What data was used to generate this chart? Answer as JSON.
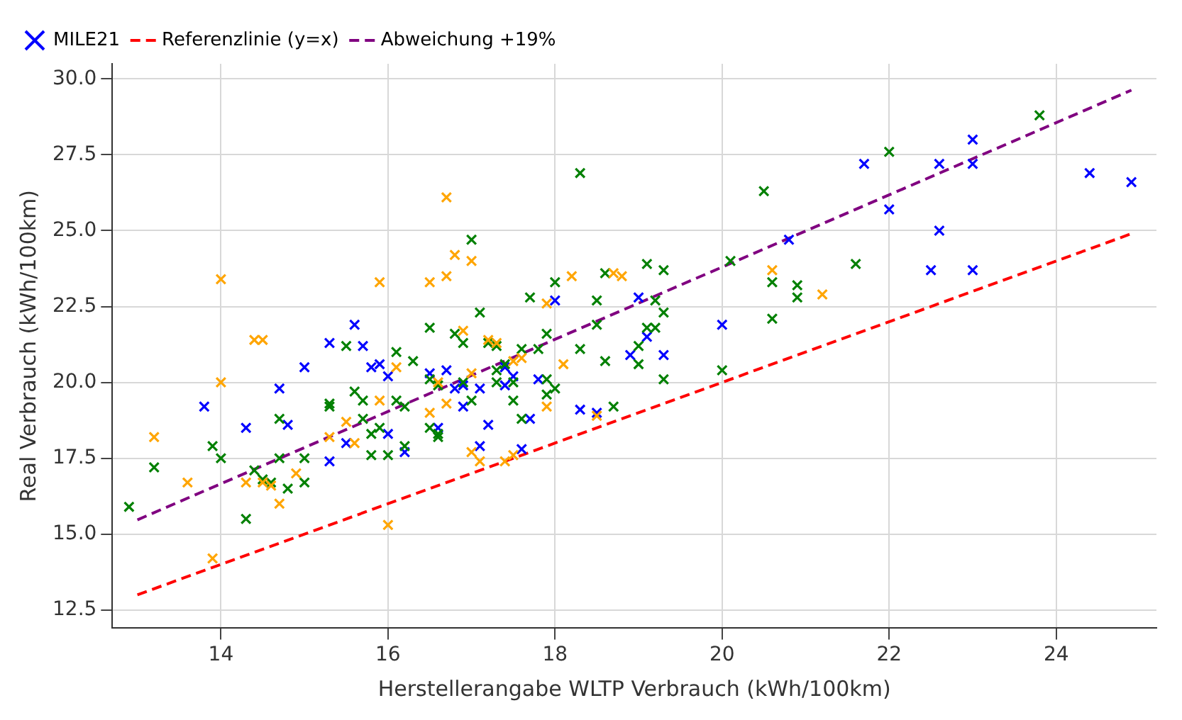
{
  "chart_data": {
    "type": "scatter",
    "xlabel": "Herstellerangabe WLTP Verbrauch (kWh/100km)",
    "ylabel": "Real Verbrauch (kWh/100km)",
    "xlim": [
      12.7,
      25.2
    ],
    "xticks": [
      14,
      16,
      18,
      20,
      22,
      24
    ],
    "ylim": [
      11.9,
      30.5
    ],
    "yticks": [
      12.5,
      {
        "value": 15,
        "label": "15.0"
      },
      17.5,
      {
        "value": 20,
        "label": "20.0"
      },
      22.5,
      {
        "value": 25,
        "label": "25.0"
      },
      27.5,
      {
        "value": 30,
        "label": "30.0"
      }
    ],
    "grid": true,
    "legend": "top left",
    "marker": "cross",
    "series": [
      {
        "color": "#ffa500",
        "x": [
          13.2,
          13.6,
          13.9,
          14.0,
          14.0,
          14.3,
          14.4,
          14.5,
          14.5,
          14.6,
          14.7,
          14.9,
          15.3,
          15.5,
          15.6,
          15.9,
          15.9,
          16.0,
          16.1,
          16.5,
          16.6,
          16.7,
          16.7,
          16.7,
          16.8,
          16.9,
          17.0,
          17.0,
          17.1,
          17.2,
          17.3,
          17.4,
          17.5,
          17.6,
          17.9,
          17.9,
          18.2,
          18.1,
          18.5,
          18.7,
          18.8,
          20.6,
          21.2,
          17.0,
          17.5,
          16.5
        ],
        "values": [
          18.2,
          16.7,
          14.2,
          23.4,
          20.0,
          16.7,
          21.4,
          21.4,
          16.7,
          16.6,
          16.0,
          17.0,
          18.2,
          18.7,
          18.0,
          23.3,
          19.4,
          15.3,
          20.5,
          23.3,
          20.0,
          26.1,
          23.5,
          19.3,
          24.2,
          21.7,
          24.0,
          20.3,
          17.4,
          21.4,
          21.3,
          17.4,
          20.7,
          20.8,
          22.6,
          19.2,
          23.5,
          20.6,
          18.9,
          23.6,
          23.5,
          23.7,
          22.9,
          17.7,
          17.6,
          19.0
        ]
      },
      {
        "color": "#008000",
        "x": [
          12.9,
          13.2,
          13.9,
          14.0,
          14.3,
          14.4,
          14.5,
          14.6,
          14.7,
          14.7,
          14.8,
          15.0,
          15.0,
          15.3,
          15.3,
          15.5,
          15.6,
          15.7,
          15.7,
          15.8,
          15.9,
          15.8,
          16.0,
          16.1,
          16.2,
          16.1,
          16.3,
          16.2,
          16.5,
          16.5,
          16.6,
          16.5,
          16.6,
          16.6,
          16.8,
          16.9,
          16.9,
          17.0,
          17.0,
          17.1,
          17.2,
          17.3,
          17.3,
          17.3,
          17.4,
          17.5,
          17.5,
          17.6,
          17.6,
          17.7,
          17.8,
          17.9,
          17.9,
          17.9,
          18.0,
          18.0,
          18.3,
          18.3,
          18.5,
          18.5,
          18.6,
          18.6,
          18.7,
          19.0,
          19.0,
          19.1,
          19.2,
          19.2,
          19.3,
          19.3,
          19.1,
          20.0,
          20.1,
          20.5,
          20.6,
          20.6,
          20.9,
          20.9,
          21.6,
          22.0,
          23.8,
          19.3
        ],
        "values": [
          15.9,
          17.2,
          17.9,
          17.5,
          15.5,
          17.1,
          16.8,
          16.7,
          18.8,
          17.5,
          16.5,
          17.5,
          16.7,
          19.3,
          19.2,
          21.2,
          19.7,
          19.4,
          18.8,
          18.3,
          18.5,
          17.6,
          17.6,
          19.4,
          19.2,
          21.0,
          20.7,
          17.9,
          21.8,
          20.1,
          19.9,
          18.5,
          18.3,
          18.2,
          21.6,
          21.3,
          20.0,
          24.7,
          19.4,
          22.3,
          21.3,
          21.2,
          20.4,
          20.0,
          20.6,
          20.0,
          19.4,
          21.1,
          18.8,
          22.8,
          21.1,
          21.6,
          20.1,
          19.6,
          23.3,
          19.8,
          21.1,
          26.9,
          22.7,
          21.9,
          20.7,
          23.6,
          19.2,
          20.6,
          21.2,
          23.9,
          22.7,
          21.8,
          22.3,
          20.1,
          21.8,
          20.4,
          24.0,
          26.3,
          23.3,
          22.1,
          23.2,
          22.8,
          23.9,
          27.6,
          28.8,
          23.7
        ]
      },
      {
        "name": "MILE21",
        "color": "#0000ff",
        "x": [
          13.8,
          14.3,
          14.7,
          14.8,
          15.0,
          15.3,
          15.3,
          15.6,
          15.5,
          15.7,
          15.8,
          15.9,
          16.0,
          16.0,
          16.2,
          16.5,
          16.6,
          16.7,
          16.8,
          16.9,
          16.9,
          17.1,
          17.2,
          17.1,
          17.4,
          17.4,
          17.6,
          17.8,
          17.7,
          18.0,
          18.3,
          18.5,
          18.9,
          19.0,
          19.1,
          20.0,
          20.8,
          21.7,
          22.0,
          22.5,
          22.6,
          22.6,
          23.0,
          23.0,
          23.0,
          24.4,
          24.9,
          17.5,
          19.3
        ],
        "values": [
          19.2,
          18.5,
          19.8,
          18.6,
          20.5,
          21.3,
          17.4,
          21.9,
          18.0,
          21.2,
          20.5,
          20.6,
          20.2,
          18.3,
          17.7,
          20.3,
          18.5,
          20.4,
          19.8,
          19.9,
          19.2,
          19.8,
          18.6,
          17.9,
          19.9,
          20.5,
          17.8,
          20.1,
          18.8,
          22.7,
          19.1,
          19.0,
          20.9,
          22.8,
          21.5,
          21.9,
          24.7,
          27.2,
          25.7,
          23.7,
          27.2,
          25.0,
          28.0,
          27.2,
          23.7,
          26.9,
          26.6,
          20.2,
          20.9
        ]
      },
      {
        "name": "Referenzlinie (y=x)",
        "type": "line",
        "line_style": "dashed",
        "marker": "none",
        "color": "#ff0000",
        "x": [
          13,
          24.9
        ],
        "values": [
          13,
          24.9
        ]
      },
      {
        "name": "Abweichung +19%",
        "type": "line",
        "line_style": "dashed",
        "marker": "none",
        "color": "#800080",
        "x": [
          13,
          24.9
        ],
        "values": [
          15.47,
          29.63
        ]
      }
    ]
  }
}
